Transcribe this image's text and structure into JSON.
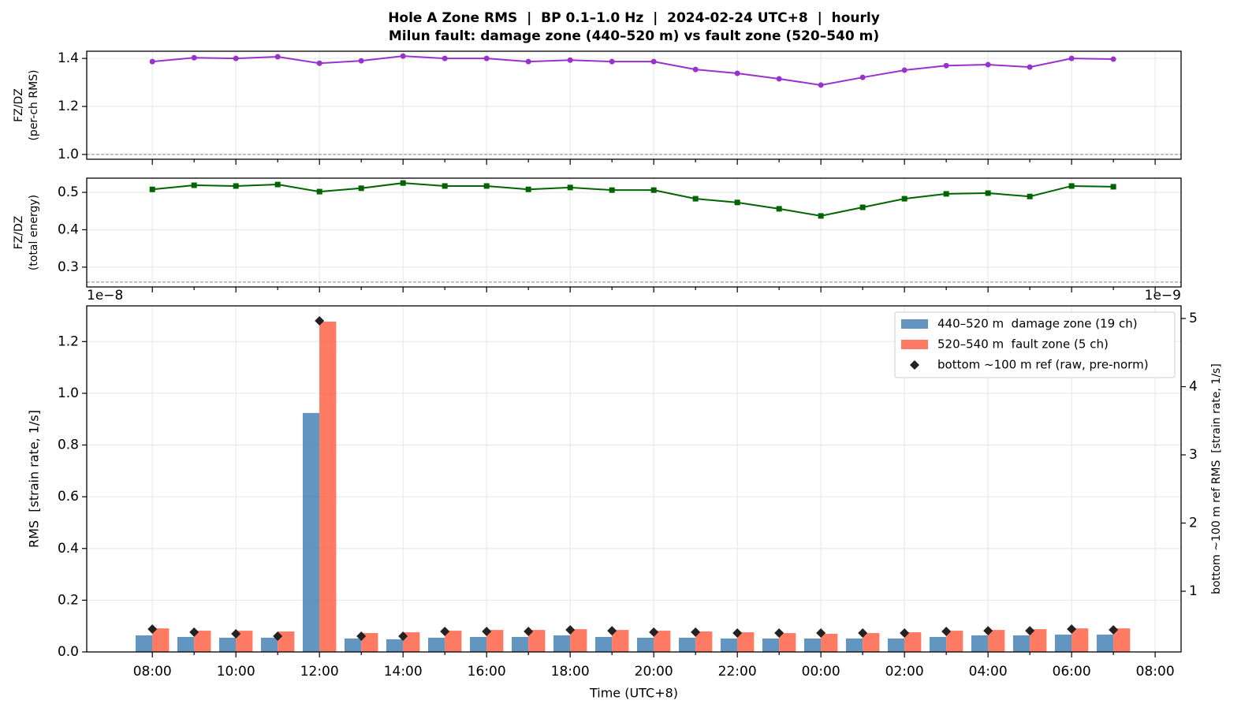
{
  "title": [
    "Hole A Zone RMS  |  BP 0.1–1.0 Hz  |  2024-02-24 UTC+8  |  hourly",
    "Milun fault: damage zone (440–520 m) vs fault zone (520–540 m)"
  ],
  "chart_data": [
    {
      "type": "line",
      "ylabel": [
        "FZ/DZ",
        "(per-ch RMS)"
      ],
      "ylim": [
        0.98,
        1.43
      ],
      "yticks": [
        {
          "value": 1,
          "label": "1.0"
        },
        1.2,
        1.4
      ],
      "grid": true,
      "reference_line": 1,
      "series": [
        {
          "color": "#9932cc",
          "marker": "circle",
          "values": [
            1.387,
            1.403,
            1.4,
            1.407,
            1.38,
            1.39,
            1.41,
            1.4,
            1.4,
            1.387,
            1.393,
            1.387,
            1.387,
            1.354,
            1.338,
            1.315,
            1.289,
            1.321,
            1.351,
            1.37,
            1.374,
            1.364,
            1.4,
            1.397,
            null
          ]
        }
      ]
    },
    {
      "type": "line",
      "ylabel": [
        "FZ/DZ",
        "(total energy)"
      ],
      "ylim": [
        0.247,
        0.538
      ],
      "yticks": [
        0.3,
        0.4,
        0.5
      ],
      "grid": true,
      "reference_line": 0.26,
      "series": [
        {
          "color": "#006400",
          "marker": "square",
          "values": [
            0.508,
            0.519,
            0.517,
            0.521,
            0.502,
            0.511,
            0.525,
            0.517,
            0.517,
            0.508,
            0.513,
            0.506,
            0.506,
            0.483,
            0.473,
            0.456,
            0.437,
            0.46,
            0.483,
            0.496,
            0.498,
            0.489,
            0.517,
            0.515,
            null
          ]
        }
      ]
    },
    {
      "type": "bar",
      "xlabel": "Time (UTC+8)",
      "ylabel": [
        "RMS  [strain rate, 1/s]"
      ],
      "y2label": "bottom ~100 m ref RMS  [strain rate, 1/s]",
      "y_offset_label": "1e−8",
      "y2_offset_label": "1e−9",
      "categories": [
        "08:00",
        null,
        "10:00",
        null,
        "12:00",
        null,
        "14:00",
        null,
        "16:00",
        null,
        "18:00",
        null,
        "20:00",
        null,
        "22:00",
        null,
        "00:00",
        null,
        "02:00",
        null,
        "04:00",
        null,
        "06:00",
        null,
        "08:00"
      ],
      "ylim": [
        0,
        1.338
      ],
      "yticks": [
        {
          "value": 0,
          "label": "0.0"
        },
        0.2,
        0.4,
        0.6,
        0.8,
        {
          "value": 1,
          "label": "1.0"
        },
        1.2
      ],
      "y2lim": [
        0.11,
        5.185
      ],
      "y2ticks": [
        1,
        2,
        3,
        4,
        5
      ],
      "grid": true,
      "legend": "upper right",
      "series": [
        {
          "name": "440–520 m  damage zone (19 ch)",
          "color": "#4682b4",
          "values": [
            0.064,
            0.058,
            0.055,
            0.055,
            0.924,
            0.052,
            0.049,
            0.055,
            0.058,
            0.058,
            0.064,
            0.058,
            0.055,
            0.055,
            0.052,
            0.052,
            0.052,
            0.052,
            0.052,
            0.058,
            0.064,
            0.064,
            0.067,
            0.067,
            null
          ]
        },
        {
          "name": "520–540 m  fault zone (5 ch)",
          "color": "#ff6347",
          "values": [
            0.091,
            0.082,
            0.082,
            0.079,
            1.277,
            0.073,
            0.076,
            0.082,
            0.085,
            0.085,
            0.088,
            0.085,
            0.082,
            0.079,
            0.076,
            0.073,
            0.07,
            0.073,
            0.076,
            0.082,
            0.085,
            0.088,
            0.091,
            0.091,
            null
          ]
        },
        {
          "name": "bottom ~100 m ref (raw, pre-norm)",
          "color": "#222222",
          "axis": "y2",
          "marker": "diamond",
          "values": [
            0.445,
            0.4,
            0.376,
            0.341,
            4.965,
            0.341,
            0.341,
            0.41,
            0.41,
            0.41,
            0.433,
            0.42,
            0.4,
            0.4,
            0.387,
            0.387,
            0.387,
            0.387,
            0.387,
            0.41,
            0.42,
            0.42,
            0.445,
            0.433,
            null
          ]
        }
      ]
    }
  ]
}
